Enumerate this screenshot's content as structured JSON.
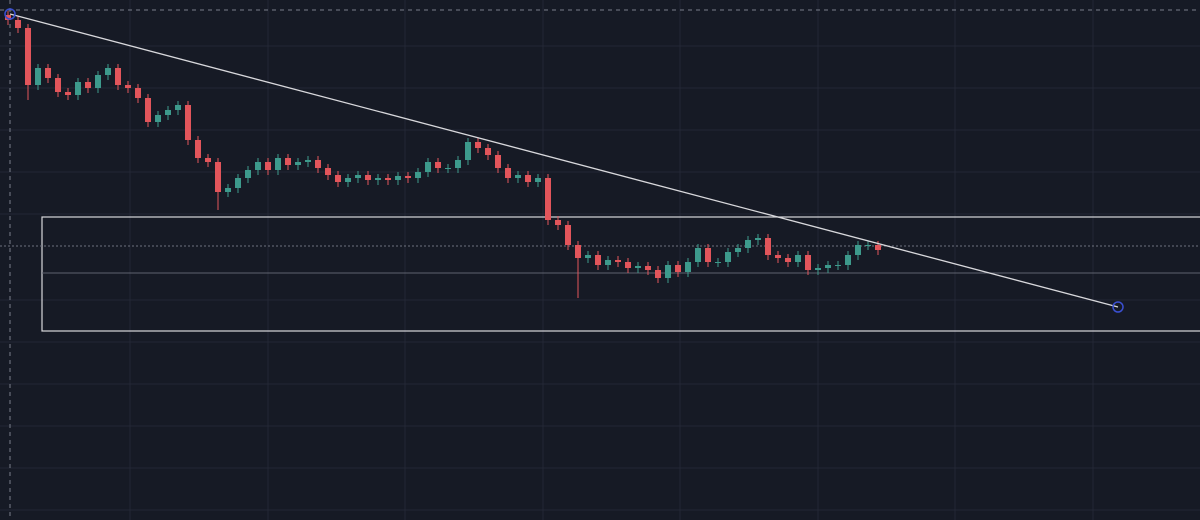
{
  "chart_data": {
    "type": "candlestick",
    "up_color": "#3d9a8c",
    "down_color": "#e2555b",
    "ylim": [
      0,
      520
    ],
    "open": [
      505,
      500,
      492,
      435,
      452,
      442,
      428,
      425,
      438,
      432,
      445,
      452,
      435,
      432,
      422,
      398,
      405,
      410,
      415,
      380,
      362,
      358,
      328,
      332,
      342,
      350,
      358,
      350,
      362,
      355,
      358,
      360,
      352,
      345,
      338,
      342,
      345,
      340,
      342,
      340,
      344,
      342,
      348,
      358,
      352,
      352,
      360,
      378,
      372,
      365,
      352,
      342,
      345,
      338,
      342,
      300,
      295,
      275,
      262,
      265,
      255,
      260,
      258,
      252,
      254,
      250,
      242,
      255,
      248,
      258,
      272,
      258,
      258,
      268,
      272,
      280,
      282,
      265,
      262,
      258,
      265,
      250,
      252,
      255,
      255,
      265,
      275,
      275
    ],
    "high": [
      509,
      504,
      496,
      456,
      456,
      446,
      432,
      442,
      442,
      449,
      456,
      456,
      439,
      436,
      426,
      409,
      414,
      419,
      419,
      384,
      366,
      362,
      336,
      346,
      354,
      362,
      362,
      366,
      366,
      362,
      364,
      364,
      356,
      349,
      346,
      349,
      349,
      346,
      346,
      348,
      348,
      352,
      362,
      362,
      356,
      364,
      382,
      382,
      376,
      369,
      356,
      349,
      349,
      346,
      346,
      304,
      299,
      279,
      269,
      269,
      264,
      264,
      262,
      258,
      258,
      254,
      259,
      259,
      262,
      276,
      276,
      262,
      272,
      276,
      284,
      286,
      286,
      269,
      266,
      269,
      269,
      256,
      259,
      259,
      269,
      279,
      279,
      279
    ],
    "low": [
      495,
      487,
      420,
      430,
      437,
      423,
      420,
      420,
      427,
      427,
      440,
      430,
      427,
      417,
      393,
      393,
      400,
      405,
      375,
      357,
      353,
      310,
      323,
      327,
      337,
      345,
      345,
      345,
      350,
      350,
      353,
      347,
      340,
      333,
      333,
      337,
      335,
      335,
      335,
      335,
      337,
      337,
      343,
      347,
      347,
      347,
      355,
      367,
      360,
      347,
      337,
      337,
      333,
      333,
      295,
      290,
      270,
      222,
      257,
      250,
      250,
      253,
      247,
      247,
      245,
      237,
      237,
      243,
      243,
      253,
      253,
      253,
      253,
      263,
      267,
      275,
      260,
      257,
      253,
      253,
      245,
      245,
      247,
      250,
      250,
      260,
      270,
      265
    ],
    "close": [
      500,
      492,
      435,
      452,
      442,
      428,
      425,
      438,
      432,
      445,
      452,
      435,
      432,
      422,
      398,
      405,
      410,
      415,
      380,
      362,
      358,
      328,
      332,
      342,
      350,
      358,
      350,
      362,
      355,
      358,
      360,
      352,
      345,
      338,
      342,
      345,
      340,
      342,
      340,
      344,
      342,
      348,
      358,
      352,
      352,
      360,
      378,
      372,
      365,
      352,
      342,
      345,
      338,
      342,
      300,
      295,
      275,
      262,
      265,
      255,
      260,
      258,
      252,
      254,
      250,
      242,
      255,
      248,
      258,
      272,
      258,
      258,
      268,
      272,
      280,
      282,
      265,
      262,
      258,
      265,
      250,
      252,
      255,
      255,
      265,
      275,
      275,
      270
    ]
  }
}
